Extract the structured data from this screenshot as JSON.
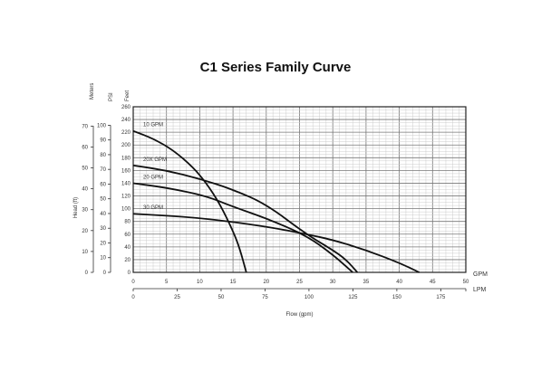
{
  "chart_data": {
    "type": "line",
    "title": "C1 Series Family Curve",
    "xlabel": "Flow (gpm)",
    "ylabel": "Head (ft)",
    "x_unit_primary": "GPM",
    "x_unit_secondary": "LPM",
    "y_unit_feet": "Feet",
    "y_unit_psi": "PSI",
    "y_unit_meters": "Meters",
    "xlim": [
      0,
      50
    ],
    "ylim": [
      0,
      260
    ],
    "x_ticks": [
      0,
      5,
      10,
      15,
      20,
      25,
      30,
      35,
      40,
      45,
      50
    ],
    "lpm_ticks": [
      0,
      25,
      50,
      75,
      100,
      125,
      150,
      175
    ],
    "y_ticks": [
      0,
      20,
      40,
      60,
      80,
      100,
      120,
      140,
      160,
      180,
      200,
      220,
      240,
      260
    ],
    "psi_ticks": [
      0,
      10,
      20,
      30,
      40,
      50,
      60,
      70,
      80,
      90,
      100
    ],
    "meter_ticks": [
      0,
      10,
      20,
      30,
      40,
      50,
      60,
      70
    ],
    "grid": true,
    "series": [
      {
        "name": "10 GPM",
        "x": [
          0,
          3,
          6,
          9,
          11,
          13,
          15,
          16,
          17
        ],
        "y": [
          222,
          210,
          192,
          165,
          140,
          108,
          65,
          38,
          0
        ]
      },
      {
        "name": "20X GPM",
        "x": [
          0,
          5,
          10,
          15,
          20,
          26,
          30,
          32,
          33.7
        ],
        "y": [
          168,
          160,
          147,
          130,
          107,
          60,
          35,
          20,
          0
        ]
      },
      {
        "name": "20 GPM",
        "x": [
          0,
          5,
          11,
          15,
          20,
          26,
          30,
          33
        ],
        "y": [
          140,
          133,
          120,
          103,
          85,
          58,
          28,
          0
        ]
      },
      {
        "name": "30 GPM",
        "x": [
          0,
          10,
          20,
          26,
          30,
          35,
          40,
          43
        ],
        "y": [
          92,
          86,
          72,
          60,
          51,
          35,
          15,
          0
        ]
      }
    ]
  }
}
